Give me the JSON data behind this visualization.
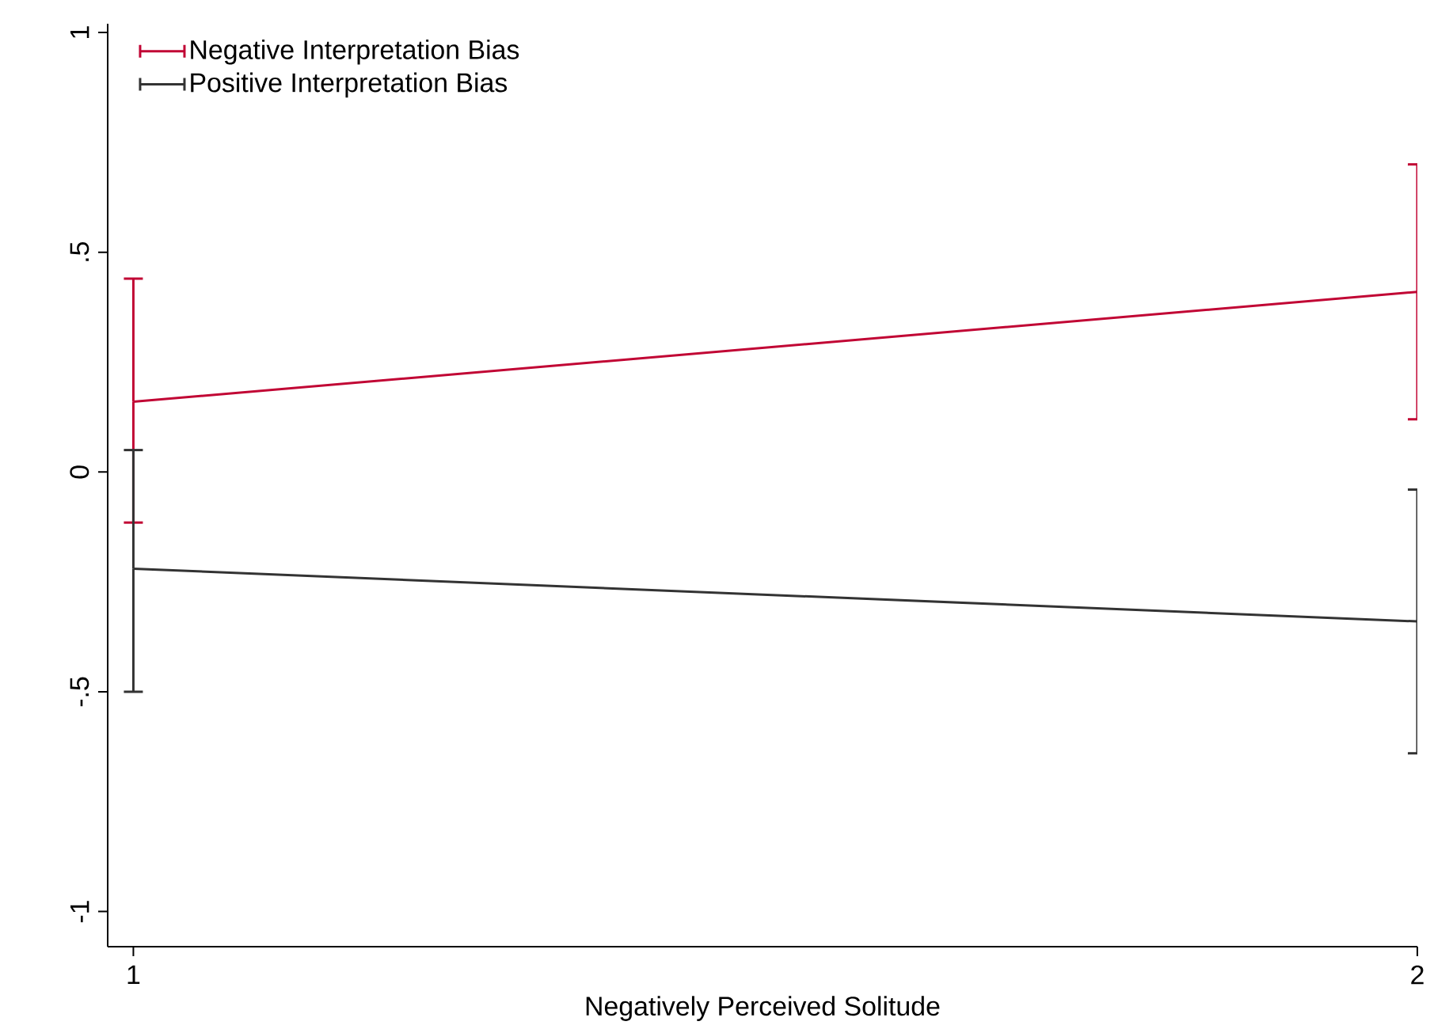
{
  "chart_data": {
    "type": "line",
    "xlabel": "Negatively Perceived Solitude",
    "x": [
      1,
      2
    ],
    "xlim": [
      0.98,
      2
    ],
    "xticks": [
      1,
      2
    ],
    "ylim": [
      -1.08,
      1.02
    ],
    "yticks": [
      {
        "value": -1,
        "label": "-1"
      },
      {
        "value": -0.5,
        "label": "-.5"
      },
      {
        "value": 0,
        "label": "0"
      },
      {
        "value": 0.5,
        "label": ".5"
      },
      {
        "value": 1,
        "label": "1"
      }
    ],
    "series": [
      {
        "name": "Negative Interpretation Bias",
        "color": "#c10534",
        "values": [
          0.16,
          0.41
        ],
        "errors": [
          [
            -0.115,
            0.44
          ],
          [
            0.12,
            0.7
          ]
        ]
      },
      {
        "name": "Positive Interpretation Bias",
        "color": "#333333",
        "values": [
          -0.22,
          -0.34
        ],
        "errors": [
          [
            -0.5,
            0.05
          ],
          [
            -0.64,
            -0.04
          ]
        ]
      }
    ],
    "legend": "top left",
    "grid": false,
    "marker": "none",
    "line_style": "solid"
  }
}
